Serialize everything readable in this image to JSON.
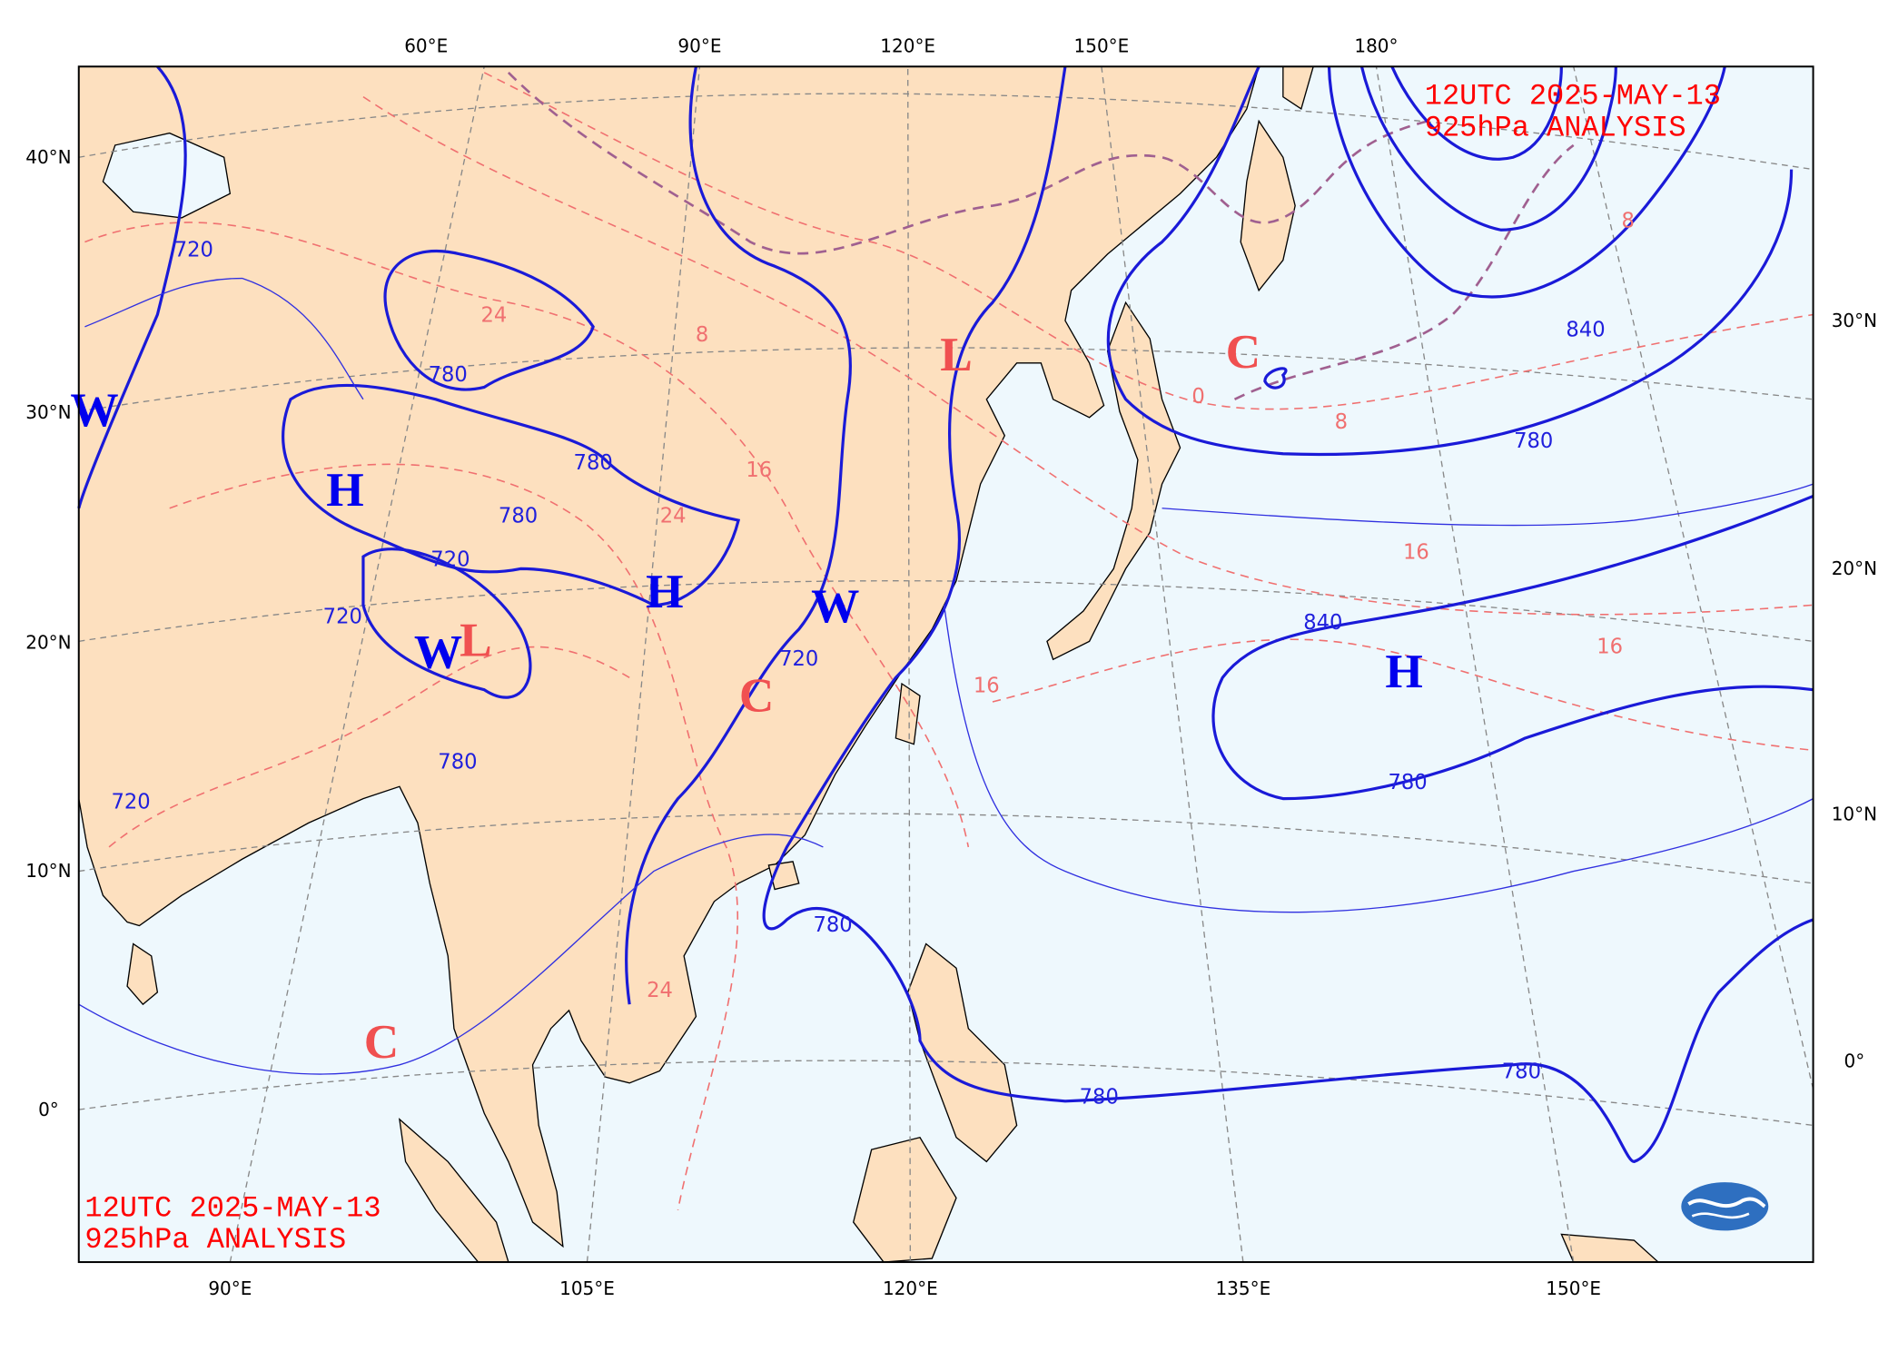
{
  "header": {
    "title_line1": "12UTC  2025-MAY-13",
    "title_line2": "925hPa ANALYSIS"
  },
  "footer": {
    "title_line1": "12UTC  2025-MAY-13",
    "title_line2": "925hPa ANALYSIS"
  },
  "axes": {
    "top": [
      "60°E",
      "90°E",
      "120°E",
      "150°E",
      "180°"
    ],
    "bottom": [
      "90°E",
      "105°E",
      "120°E",
      "135°E",
      "150°E"
    ],
    "left": [
      "40°N",
      "30°N",
      "20°N",
      "10°N",
      "0°"
    ],
    "right": [
      "30°N",
      "20°N",
      "10°N",
      "0°"
    ]
  },
  "systems": [
    {
      "label": "H",
      "kind": "pressure-high"
    },
    {
      "label": "H",
      "kind": "pressure-high"
    },
    {
      "label": "H",
      "kind": "pressure-high"
    },
    {
      "label": "W",
      "kind": "warm"
    },
    {
      "label": "W",
      "kind": "warm"
    },
    {
      "label": "W",
      "kind": "warm"
    },
    {
      "label": "L",
      "kind": "pressure-low"
    },
    {
      "label": "L",
      "kind": "pressure-low"
    },
    {
      "label": "C",
      "kind": "cold"
    },
    {
      "label": "C",
      "kind": "cold"
    },
    {
      "label": "C",
      "kind": "cold"
    }
  ],
  "contour_labels": [
    {
      "label": "720",
      "kind": "height"
    },
    {
      "label": "780",
      "kind": "height"
    },
    {
      "label": "780",
      "kind": "height"
    },
    {
      "label": "780",
      "kind": "height"
    },
    {
      "label": "720",
      "kind": "height"
    },
    {
      "label": "720",
      "kind": "height"
    },
    {
      "label": "780",
      "kind": "height"
    },
    {
      "label": "720",
      "kind": "height"
    },
    {
      "label": "780",
      "kind": "height"
    },
    {
      "label": "840",
      "kind": "height"
    },
    {
      "label": "780",
      "kind": "height"
    },
    {
      "label": "840",
      "kind": "height"
    },
    {
      "label": "780",
      "kind": "height"
    },
    {
      "label": "780",
      "kind": "height"
    },
    {
      "label": "780",
      "kind": "height"
    },
    {
      "label": "720",
      "kind": "height"
    },
    {
      "label": "24",
      "kind": "temp"
    },
    {
      "label": "8",
      "kind": "temp"
    },
    {
      "label": "16",
      "kind": "temp"
    },
    {
      "label": "24",
      "kind": "temp"
    },
    {
      "label": "16",
      "kind": "temp"
    },
    {
      "label": "8",
      "kind": "temp"
    },
    {
      "label": "16",
      "kind": "temp"
    },
    {
      "label": "16",
      "kind": "temp"
    },
    {
      "label": "24",
      "kind": "temp"
    },
    {
      "label": "0",
      "kind": "temp"
    },
    {
      "label": "8",
      "kind": "temp"
    }
  ]
}
